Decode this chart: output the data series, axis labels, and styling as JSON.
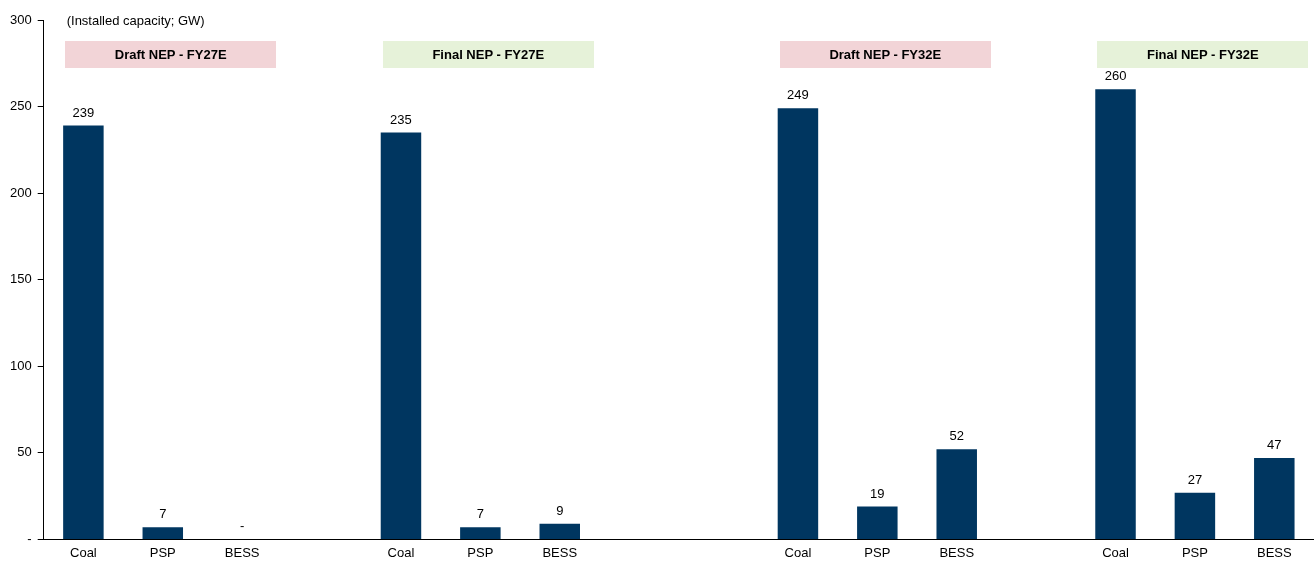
{
  "chart_data": {
    "type": "bar",
    "ylabel": "(Installed capacity; GW)",
    "annotations": [
      "Draft NEP - FY27E",
      "Final NEP - FY27E",
      "Draft NEP - FY32E",
      "Final NEP  - FY32E"
    ],
    "categories": [
      "Coal",
      "PSP",
      "BESS",
      null,
      "Coal",
      "PSP",
      "BESS",
      null,
      null,
      "Coal",
      "PSP",
      "BESS",
      null,
      "Coal",
      "PSP",
      "BESS"
    ],
    "values": [
      239,
      7,
      0,
      null,
      235,
      7,
      9,
      null,
      null,
      249,
      19,
      52,
      null,
      260,
      27,
      47
    ],
    "value_labels": [
      "239",
      "7",
      "-",
      null,
      "235",
      "7",
      "9",
      null,
      null,
      "249",
      "19",
      "52",
      null,
      "260",
      "27",
      "47"
    ],
    "color": "#003660",
    "ylim": [
      0,
      300
    ],
    "yticks": [
      {
        "value": 0,
        "label": "-"
      },
      50,
      100,
      150,
      200,
      250,
      300
    ],
    "grid": false
  }
}
